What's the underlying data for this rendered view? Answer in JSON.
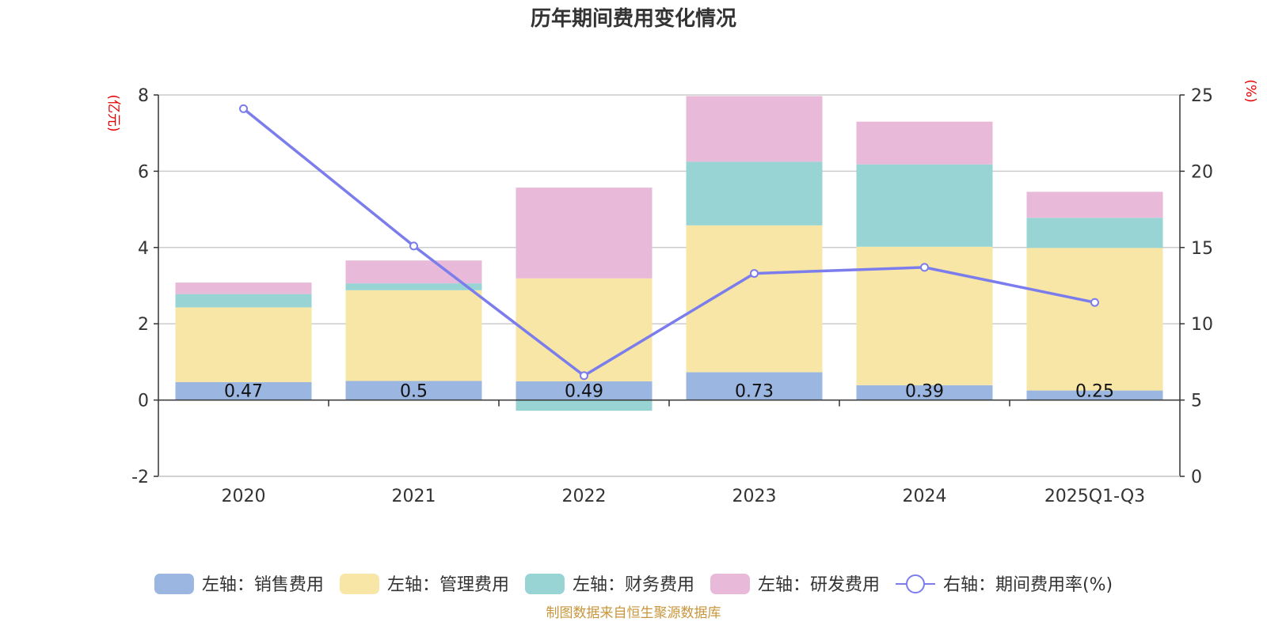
{
  "chart_data": {
    "type": "bar",
    "stacked": true,
    "title": "历年期间费用变化情况",
    "categories": [
      "2020",
      "2021",
      "2022",
      "2023",
      "2024",
      "2025Q1-Q3"
    ],
    "left_axis": {
      "unit": "(亿元)",
      "ylim": [
        -2,
        8
      ],
      "ticks": [
        -2,
        0,
        2,
        4,
        6,
        8
      ]
    },
    "right_axis": {
      "unit": "(%)",
      "ylim": [
        0,
        25
      ],
      "ticks": [
        0,
        5,
        10,
        15,
        20,
        25
      ]
    },
    "series": [
      {
        "name": "左轴：销售费用",
        "axis": "left",
        "color": "#9bb6e0",
        "values": [
          0.47,
          0.5,
          0.49,
          0.73,
          0.39,
          0.25
        ],
        "labels": [
          "0.47",
          "0.5",
          "0.49",
          "0.73",
          "0.39",
          "0.25"
        ]
      },
      {
        "name": "左轴：管理费用",
        "axis": "left",
        "color": "#f7e6a6",
        "values": [
          1.96,
          2.38,
          2.7,
          3.85,
          3.63,
          3.74
        ]
      },
      {
        "name": "左轴：财务费用",
        "axis": "left",
        "color": "#98d4d4",
        "values": [
          0.35,
          0.18,
          -0.28,
          1.67,
          2.16,
          0.79
        ]
      },
      {
        "name": "左轴：研发费用",
        "axis": "left",
        "color": "#e8b9d9",
        "values": [
          0.3,
          0.6,
          2.38,
          1.72,
          1.12,
          0.68
        ]
      },
      {
        "name": "右轴：期间费用率(%)",
        "axis": "right",
        "type": "line",
        "color": "#7b7ded",
        "values": [
          24.1,
          15.1,
          6.6,
          13.3,
          13.7,
          11.4
        ]
      }
    ],
    "grid": true,
    "legend_position": "bottom",
    "source": "制图数据来自恒生聚源数据库"
  }
}
